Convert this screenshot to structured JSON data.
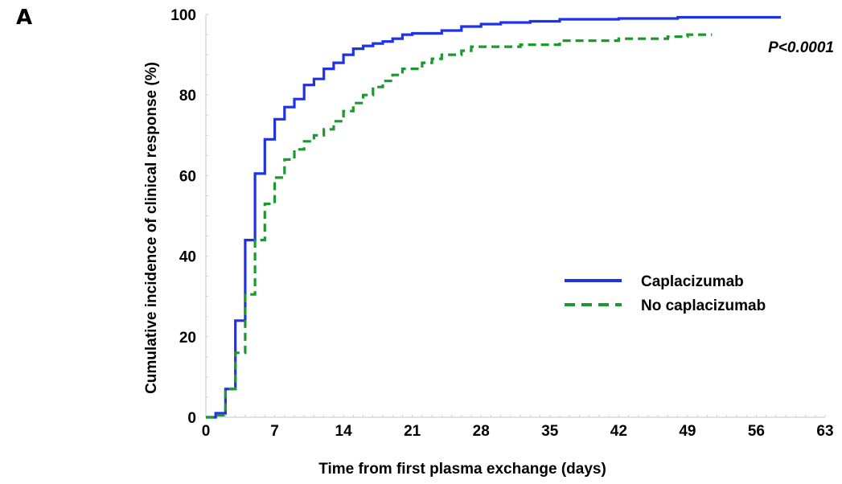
{
  "chart_data": {
    "type": "line",
    "panel_label": "A",
    "xlabel": "Time from first plasma exchange (days)",
    "ylabel": "Cumulative incidence of clinical response (%)",
    "xlim": [
      0,
      63
    ],
    "ylim": [
      0,
      100
    ],
    "x_ticks": [
      0,
      7,
      14,
      21,
      28,
      35,
      42,
      49,
      56,
      63
    ],
    "y_ticks": [
      0,
      20,
      40,
      60,
      80,
      100
    ],
    "annotation": "P<0.0001",
    "legend_position": "center-right",
    "grid": false,
    "series": [
      {
        "name": "Caplacizumab",
        "color": "#1f32e6",
        "dash": "solid",
        "points": [
          [
            0,
            0
          ],
          [
            1,
            0
          ],
          [
            1,
            1
          ],
          [
            2,
            1
          ],
          [
            2,
            7
          ],
          [
            3,
            7
          ],
          [
            3,
            24
          ],
          [
            4,
            24
          ],
          [
            4,
            44
          ],
          [
            5,
            44
          ],
          [
            5,
            60.5
          ],
          [
            6,
            60.5
          ],
          [
            6,
            69
          ],
          [
            7,
            69
          ],
          [
            7,
            74
          ],
          [
            8,
            74
          ],
          [
            8,
            77
          ],
          [
            9,
            77
          ],
          [
            9,
            79
          ],
          [
            10,
            79
          ],
          [
            10,
            82.5
          ],
          [
            11,
            82.5
          ],
          [
            11,
            84
          ],
          [
            12,
            84
          ],
          [
            12,
            86.5
          ],
          [
            13,
            86.5
          ],
          [
            13,
            88
          ],
          [
            14,
            88
          ],
          [
            14,
            90
          ],
          [
            15,
            90
          ],
          [
            15,
            91.5
          ],
          [
            16,
            91.5
          ],
          [
            16,
            92.2
          ],
          [
            17,
            92.2
          ],
          [
            17,
            92.8
          ],
          [
            18,
            92.8
          ],
          [
            18,
            93.3
          ],
          [
            19,
            93.3
          ],
          [
            19,
            94
          ],
          [
            20,
            94
          ],
          [
            20,
            95
          ],
          [
            21,
            95
          ],
          [
            21,
            95.3
          ],
          [
            24,
            95.3
          ],
          [
            24,
            96
          ],
          [
            26,
            96
          ],
          [
            26,
            97
          ],
          [
            28,
            97
          ],
          [
            28,
            97.6
          ],
          [
            30,
            97.6
          ],
          [
            30,
            98
          ],
          [
            33,
            98
          ],
          [
            33,
            98.3
          ],
          [
            36,
            98.3
          ],
          [
            36,
            98.8
          ],
          [
            42,
            98.8
          ],
          [
            42,
            99
          ],
          [
            48,
            99
          ],
          [
            48,
            99.3
          ],
          [
            58.5,
            99.3
          ]
        ]
      },
      {
        "name": "No caplacizumab",
        "color": "#1a9a2e",
        "dash": "dashed",
        "points": [
          [
            0,
            0
          ],
          [
            1,
            0
          ],
          [
            1,
            0.5
          ],
          [
            2,
            0.5
          ],
          [
            2,
            7
          ],
          [
            3,
            7
          ],
          [
            3,
            16
          ],
          [
            4,
            16
          ],
          [
            4,
            30.5
          ],
          [
            5,
            30.5
          ],
          [
            5,
            44
          ],
          [
            6,
            44
          ],
          [
            6,
            53
          ],
          [
            7,
            53
          ],
          [
            7,
            59.5
          ],
          [
            8,
            59.5
          ],
          [
            8,
            64
          ],
          [
            9,
            64
          ],
          [
            9,
            66.5
          ],
          [
            10,
            66.5
          ],
          [
            10,
            68.5
          ],
          [
            11,
            68.5
          ],
          [
            11,
            70
          ],
          [
            12,
            70
          ],
          [
            12,
            71.5
          ],
          [
            13,
            71.5
          ],
          [
            13,
            73.5
          ],
          [
            14,
            73.5
          ],
          [
            14,
            76
          ],
          [
            15,
            76
          ],
          [
            15,
            78
          ],
          [
            16,
            78
          ],
          [
            16,
            80
          ],
          [
            17,
            80
          ],
          [
            17,
            82
          ],
          [
            18,
            82
          ],
          [
            18,
            83.5
          ],
          [
            19,
            83.5
          ],
          [
            19,
            85
          ],
          [
            20,
            85
          ],
          [
            20,
            86.5
          ],
          [
            22,
            86.5
          ],
          [
            22,
            88
          ],
          [
            23,
            88
          ],
          [
            23,
            89
          ],
          [
            24,
            89
          ],
          [
            24,
            90
          ],
          [
            26,
            90
          ],
          [
            26,
            91
          ],
          [
            27,
            91
          ],
          [
            27,
            92
          ],
          [
            32,
            92
          ],
          [
            32,
            92.5
          ],
          [
            36,
            92.5
          ],
          [
            36,
            93.5
          ],
          [
            42,
            93.5
          ],
          [
            42,
            94
          ],
          [
            47,
            94
          ],
          [
            47,
            94.5
          ],
          [
            49,
            94.5
          ],
          [
            49,
            95
          ],
          [
            51.5,
            95
          ]
        ]
      }
    ]
  }
}
